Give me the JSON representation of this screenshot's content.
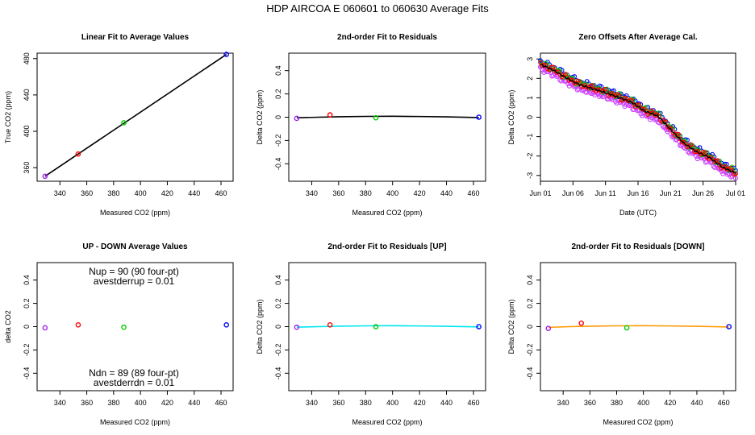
{
  "title": "HDP    AIRCOA E    060601 to 060630    Average Fits",
  "colors": {
    "purple": "#a020f0",
    "red": "#ff0000",
    "green": "#00cc00",
    "blue": "#0000ff",
    "black": "#000000",
    "cyan": "#00e5ee",
    "orange": "#ff9900",
    "violet": "#cc44ff"
  },
  "chart_data": [
    {
      "type": "line",
      "title": "Linear Fit to Average Values",
      "xlabel": "Measured CO2 (ppm)",
      "ylabel": "True CO2 (ppm)",
      "xlim": [
        323,
        469
      ],
      "ylim": [
        345,
        486
      ],
      "xticks": [
        340,
        360,
        380,
        400,
        420,
        440,
        460
      ],
      "yticks": [
        360,
        400,
        440,
        480
      ],
      "points": [
        {
          "x": 328.9,
          "y": 350.5,
          "color": "purple"
        },
        {
          "x": 353.6,
          "y": 375.0,
          "color": "red"
        },
        {
          "x": 387.6,
          "y": 409.4,
          "color": "green"
        },
        {
          "x": 464.0,
          "y": 484.6,
          "color": "blue"
        }
      ],
      "fit_line": {
        "x": [
          328.9,
          464.0
        ],
        "y": [
          350.5,
          484.6
        ],
        "color": "black"
      }
    },
    {
      "type": "line",
      "title": "2nd-order Fit to Residuals",
      "xlabel": "Measured CO2 (ppm)",
      "ylabel": "Delta CO2 (ppm)",
      "xlim": [
        323,
        469
      ],
      "ylim": [
        -0.55,
        0.55
      ],
      "xticks": [
        340,
        360,
        380,
        400,
        420,
        440,
        460
      ],
      "yticks": [
        -0.4,
        -0.2,
        0.0,
        0.2,
        0.4
      ],
      "points": [
        {
          "x": 328.9,
          "y": -0.01,
          "color": "purple"
        },
        {
          "x": 353.6,
          "y": 0.02,
          "color": "red"
        },
        {
          "x": 387.6,
          "y": -0.005,
          "color": "green"
        },
        {
          "x": 464.0,
          "y": 0.0,
          "color": "blue"
        }
      ],
      "fit_curve": {
        "x": [
          328.9,
          345,
          360,
          380,
          400,
          420,
          440,
          464
        ],
        "y": [
          -0.005,
          0.0,
          0.004,
          0.007,
          0.008,
          0.006,
          0.003,
          -0.003
        ],
        "color": "black"
      }
    },
    {
      "type": "scatter",
      "title": "Zero Offsets After Average Cal.",
      "xlabel": "Date (UTC)",
      "ylabel": "Delta CO2 (ppm)",
      "xlim": [
        "2006-06-01",
        "2006-07-01"
      ],
      "ylim": [
        -3.3,
        3.3
      ],
      "xticks": [
        "Jun 01",
        "Jun 06",
        "Jun 11",
        "Jun 16",
        "Jun 21",
        "Jun 26",
        "Jul 01"
      ],
      "yticks": [
        -3,
        -2,
        -1,
        0,
        1,
        2,
        3
      ],
      "trend": {
        "dates": [
          "2006-06-01",
          "2006-06-03",
          "2006-06-05",
          "2006-06-07",
          "2006-06-09",
          "2006-06-11",
          "2006-06-13",
          "2006-06-15",
          "2006-06-17",
          "2006-06-19",
          "2006-06-21",
          "2006-06-23",
          "2006-06-25",
          "2006-06-27",
          "2006-06-29",
          "2006-07-01"
        ],
        "values": [
          2.75,
          2.45,
          2.05,
          1.7,
          1.5,
          1.3,
          1.05,
          0.8,
          0.35,
          0.1,
          -0.6,
          -1.3,
          -1.75,
          -2.05,
          -2.55,
          -2.85
        ]
      },
      "series": [
        {
          "color": "violet",
          "offset": -0.22
        },
        {
          "color": "blue",
          "offset": 0.12
        },
        {
          "color": "green",
          "offset": 0.05
        },
        {
          "color": "red",
          "offset": 0.0
        },
        {
          "color": "black",
          "offset": -0.03
        }
      ]
    },
    {
      "type": "scatter",
      "title": "UP - DOWN Average Values",
      "xlabel": "Measured CO2 (ppm)",
      "ylabel": "delta CO2",
      "xlim": [
        323,
        469
      ],
      "ylim": [
        -0.55,
        0.55
      ],
      "xticks": [
        340,
        360,
        380,
        400,
        420,
        440,
        460
      ],
      "yticks": [
        -0.4,
        -0.2,
        0.0,
        0.2,
        0.4
      ],
      "points": [
        {
          "x": 328.9,
          "y": -0.01,
          "color": "purple"
        },
        {
          "x": 353.6,
          "y": 0.015,
          "color": "red"
        },
        {
          "x": 387.6,
          "y": -0.005,
          "color": "green"
        },
        {
          "x": 464.0,
          "y": 0.015,
          "color": "blue"
        }
      ],
      "annotations": [
        "Nup = 90 (90 four-pt)",
        "avestderrup =  0.01",
        "Ndn = 89 (89 four-pt)",
        "avestderrdn =  0.01"
      ]
    },
    {
      "type": "line",
      "title": "2nd-order Fit to Residuals [UP]",
      "xlabel": "Measured CO2 (ppm)",
      "ylabel": "Delta CO2 (ppm)",
      "xlim": [
        323,
        469
      ],
      "ylim": [
        -0.55,
        0.55
      ],
      "xticks": [
        340,
        360,
        380,
        400,
        420,
        440,
        460
      ],
      "yticks": [
        -0.4,
        -0.2,
        0.0,
        0.2,
        0.4
      ],
      "points": [
        {
          "x": 328.9,
          "y": -0.005,
          "color": "purple"
        },
        {
          "x": 353.6,
          "y": 0.015,
          "color": "red"
        },
        {
          "x": 387.6,
          "y": 0.0,
          "color": "green"
        },
        {
          "x": 464.0,
          "y": 0.0,
          "color": "blue"
        }
      ],
      "fit_curve": {
        "x": [
          328.9,
          345,
          360,
          380,
          400,
          420,
          440,
          464
        ],
        "y": [
          -0.004,
          0.0,
          0.004,
          0.007,
          0.008,
          0.006,
          0.003,
          -0.002
        ],
        "color": "cyan"
      }
    },
    {
      "type": "line",
      "title": "2nd-order Fit to Residuals [DOWN]",
      "xlabel": "Measured CO2 (ppm)",
      "ylabel": "Delta CO2 (ppm)",
      "xlim": [
        323,
        469
      ],
      "ylim": [
        -0.55,
        0.55
      ],
      "xticks": [
        340,
        360,
        380,
        400,
        420,
        440,
        460
      ],
      "yticks": [
        -0.4,
        -0.2,
        0.0,
        0.2,
        0.4
      ],
      "points": [
        {
          "x": 328.9,
          "y": -0.015,
          "color": "purple"
        },
        {
          "x": 353.6,
          "y": 0.03,
          "color": "red"
        },
        {
          "x": 387.6,
          "y": -0.01,
          "color": "green"
        },
        {
          "x": 464.0,
          "y": 0.0,
          "color": "blue"
        }
      ],
      "fit_curve": {
        "x": [
          328.9,
          345,
          360,
          380,
          400,
          420,
          440,
          464
        ],
        "y": [
          -0.006,
          0.0,
          0.004,
          0.007,
          0.008,
          0.006,
          0.003,
          -0.003
        ],
        "color": "orange"
      }
    }
  ]
}
